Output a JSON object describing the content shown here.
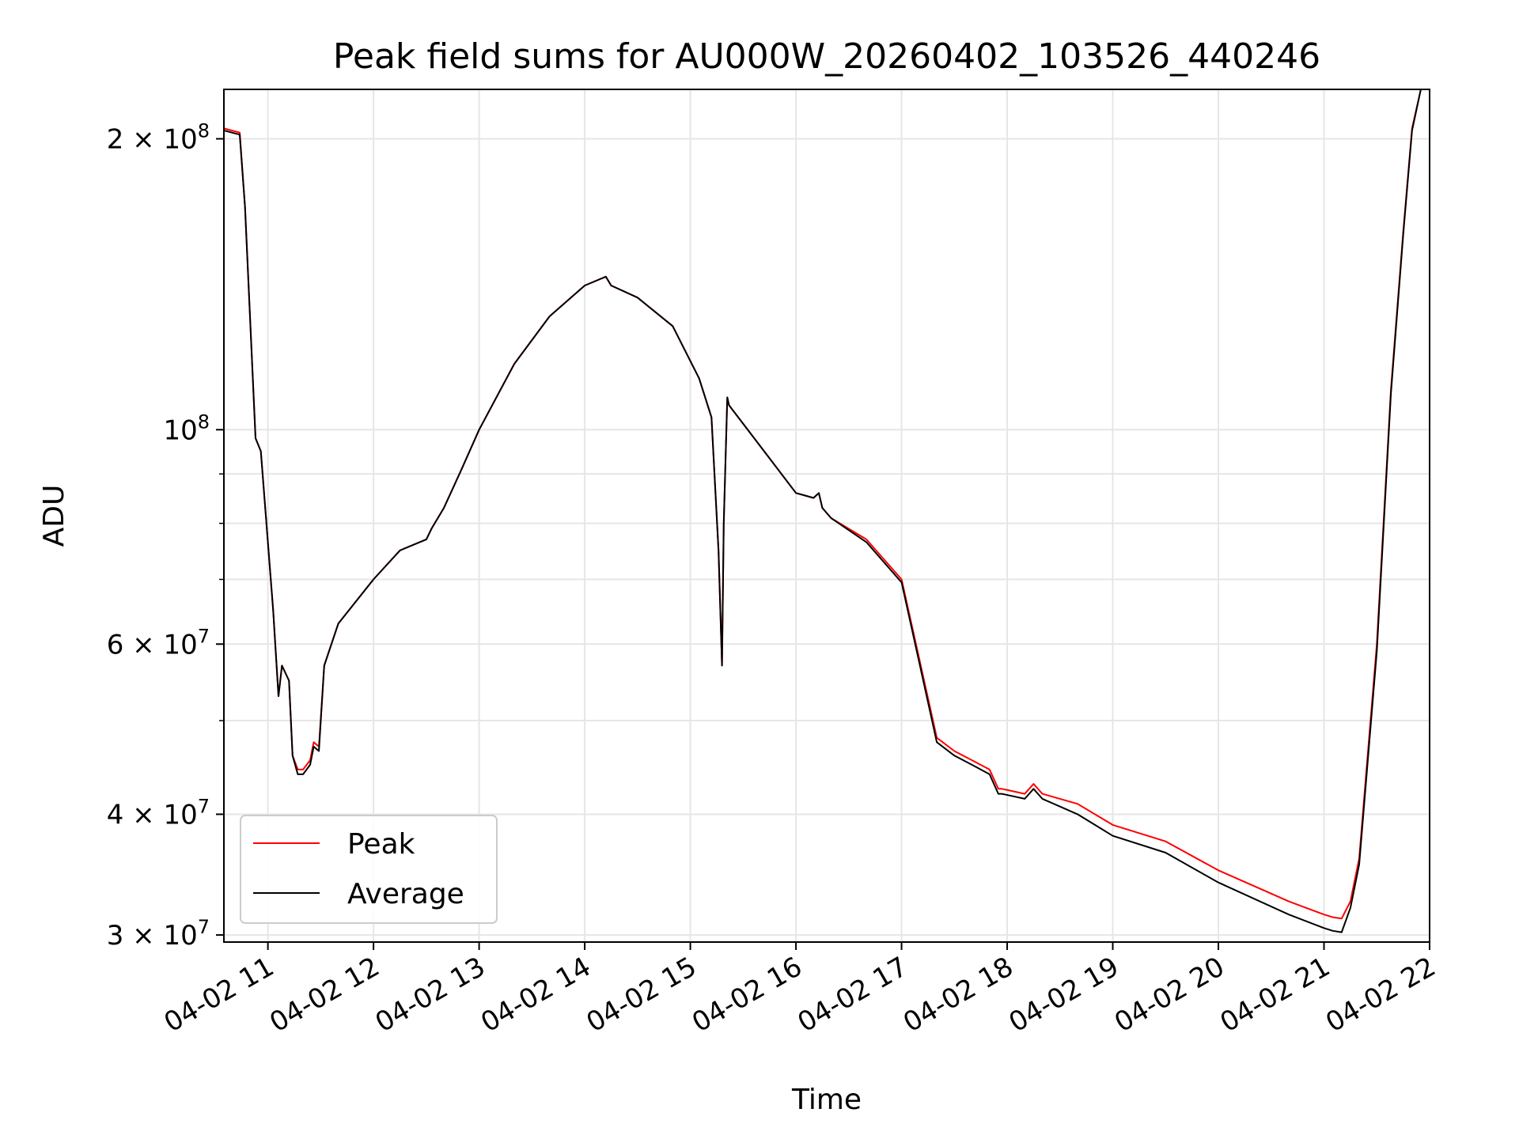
{
  "chart_data": {
    "type": "line",
    "title": "Peak field sums for AU000W_20260402_103526_440246",
    "xlabel": "Time",
    "ylabel": "ADU",
    "x_axis": "time",
    "y_scale": "log",
    "xlim": [
      "2026-04-02 10:35",
      "2026-04-02 22:00"
    ],
    "ylim": [
      29500000,
      225000000
    ],
    "x_ticks": [
      {
        "value": "2026-04-02 11:00",
        "label": "04-02 11"
      },
      {
        "value": "2026-04-02 12:00",
        "label": "04-02 12"
      },
      {
        "value": "2026-04-02 13:00",
        "label": "04-02 13"
      },
      {
        "value": "2026-04-02 14:00",
        "label": "04-02 14"
      },
      {
        "value": "2026-04-02 15:00",
        "label": "04-02 15"
      },
      {
        "value": "2026-04-02 16:00",
        "label": "04-02 16"
      },
      {
        "value": "2026-04-02 17:00",
        "label": "04-02 17"
      },
      {
        "value": "2026-04-02 18:00",
        "label": "04-02 18"
      },
      {
        "value": "2026-04-02 19:00",
        "label": "04-02 19"
      },
      {
        "value": "2026-04-02 20:00",
        "label": "04-02 20"
      },
      {
        "value": "2026-04-02 21:00",
        "label": "04-02 21"
      },
      {
        "value": "2026-04-02 22:00",
        "label": "04-02 22"
      }
    ],
    "y_ticks": [
      {
        "value": 200000000,
        "mantissa": "2",
        "exponent": "8"
      },
      {
        "value": 100000000,
        "mantissa": "",
        "exponent": "8"
      },
      {
        "value": 60000000,
        "mantissa": "6",
        "exponent": "7"
      },
      {
        "value": 40000000,
        "mantissa": "4",
        "exponent": "7"
      },
      {
        "value": 30000000,
        "mantissa": "3",
        "exponent": "7"
      }
    ],
    "y_minor_ticks": [
      50000000,
      70000000,
      80000000,
      90000000
    ],
    "grid": true,
    "legend_position": "lower-left",
    "series": [
      {
        "name": "Peak",
        "color": "#ff0000",
        "x": [
          "2026-04-02 10:35",
          "2026-04-02 10:44",
          "2026-04-02 10:47",
          "2026-04-02 10:53",
          "2026-04-02 10:56",
          "2026-04-02 11:03",
          "2026-04-02 11:06",
          "2026-04-02 11:08",
          "2026-04-02 11:12",
          "2026-04-02 11:14",
          "2026-04-02 11:17",
          "2026-04-02 11:20",
          "2026-04-02 11:24",
          "2026-04-02 11:26",
          "2026-04-02 11:29",
          "2026-04-02 11:32",
          "2026-04-02 11:40",
          "2026-04-02 12:00",
          "2026-04-02 12:15",
          "2026-04-02 12:30",
          "2026-04-02 12:33",
          "2026-04-02 12:40",
          "2026-04-02 12:50",
          "2026-04-02 13:00",
          "2026-04-02 13:20",
          "2026-04-02 13:40",
          "2026-04-02 14:00",
          "2026-04-02 14:12",
          "2026-04-02 14:15",
          "2026-04-02 14:30",
          "2026-04-02 14:50",
          "2026-04-02 15:05",
          "2026-04-02 15:12",
          "2026-04-02 15:16",
          "2026-04-02 15:18",
          "2026-04-02 15:19",
          "2026-04-02 15:21",
          "2026-04-02 15:22",
          "2026-04-02 15:40",
          "2026-04-02 16:00",
          "2026-04-02 16:10",
          "2026-04-02 16:13",
          "2026-04-02 16:15",
          "2026-04-02 16:20",
          "2026-04-02 16:40",
          "2026-04-02 17:00",
          "2026-04-02 17:10",
          "2026-04-02 17:20",
          "2026-04-02 17:30",
          "2026-04-02 17:40",
          "2026-04-02 17:50",
          "2026-04-02 17:55",
          "2026-04-02 17:57",
          "2026-04-02 18:10",
          "2026-04-02 18:15",
          "2026-04-02 18:20",
          "2026-04-02 18:40",
          "2026-04-02 19:00",
          "2026-04-02 19:30",
          "2026-04-02 20:00",
          "2026-04-02 20:40",
          "2026-04-02 21:00",
          "2026-04-02 21:05",
          "2026-04-02 21:10",
          "2026-04-02 21:15",
          "2026-04-02 21:20",
          "2026-04-02 21:30",
          "2026-04-02 21:38",
          "2026-04-02 21:45",
          "2026-04-02 21:50",
          "2026-04-02 21:55"
        ],
        "y": [
          205000000,
          203000000,
          170000000,
          98000000,
          95000000,
          65000000,
          53000000,
          57000000,
          55000000,
          46000000,
          44500000,
          44500000,
          45500000,
          47500000,
          47000000,
          57000000,
          63000000,
          70000000,
          75000000,
          77000000,
          79000000,
          83000000,
          91000000,
          100000000,
          117000000,
          131000000,
          141000000,
          144000000,
          141000000,
          137000000,
          128000000,
          113000000,
          103000000,
          75000000,
          57000000,
          80000000,
          108000000,
          106000000,
          96000000,
          86000000,
          85000000,
          86000000,
          83000000,
          81000000,
          77000000,
          70000000,
          58000000,
          48000000,
          46500000,
          45500000,
          44500000,
          42500000,
          42500000,
          42000000,
          43000000,
          42000000,
          41000000,
          39000000,
          37500000,
          35000000,
          32500000,
          31500000,
          31300000,
          31200000,
          32500000,
          36000000,
          60000000,
          110000000,
          160000000,
          205000000,
          225000000
        ]
      },
      {
        "name": "Average",
        "color": "#000000",
        "x": [
          "2026-04-02 10:35",
          "2026-04-02 10:44",
          "2026-04-02 10:47",
          "2026-04-02 10:53",
          "2026-04-02 10:56",
          "2026-04-02 11:03",
          "2026-04-02 11:06",
          "2026-04-02 11:08",
          "2026-04-02 11:12",
          "2026-04-02 11:14",
          "2026-04-02 11:17",
          "2026-04-02 11:20",
          "2026-04-02 11:24",
          "2026-04-02 11:26",
          "2026-04-02 11:29",
          "2026-04-02 11:32",
          "2026-04-02 11:40",
          "2026-04-02 12:00",
          "2026-04-02 12:15",
          "2026-04-02 12:30",
          "2026-04-02 12:33",
          "2026-04-02 12:40",
          "2026-04-02 12:50",
          "2026-04-02 13:00",
          "2026-04-02 13:20",
          "2026-04-02 13:40",
          "2026-04-02 14:00",
          "2026-04-02 14:12",
          "2026-04-02 14:15",
          "2026-04-02 14:30",
          "2026-04-02 14:50",
          "2026-04-02 15:05",
          "2026-04-02 15:12",
          "2026-04-02 15:16",
          "2026-04-02 15:18",
          "2026-04-02 15:19",
          "2026-04-02 15:21",
          "2026-04-02 15:22",
          "2026-04-02 15:40",
          "2026-04-02 16:00",
          "2026-04-02 16:10",
          "2026-04-02 16:13",
          "2026-04-02 16:15",
          "2026-04-02 16:20",
          "2026-04-02 16:40",
          "2026-04-02 17:00",
          "2026-04-02 17:10",
          "2026-04-02 17:20",
          "2026-04-02 17:30",
          "2026-04-02 17:40",
          "2026-04-02 17:50",
          "2026-04-02 17:55",
          "2026-04-02 17:57",
          "2026-04-02 18:10",
          "2026-04-02 18:15",
          "2026-04-02 18:20",
          "2026-04-02 18:40",
          "2026-04-02 19:00",
          "2026-04-02 19:30",
          "2026-04-02 20:00",
          "2026-04-02 20:40",
          "2026-04-02 21:00",
          "2026-04-02 21:05",
          "2026-04-02 21:10",
          "2026-04-02 21:15",
          "2026-04-02 21:20",
          "2026-04-02 21:30",
          "2026-04-02 21:38",
          "2026-04-02 21:45",
          "2026-04-02 21:50",
          "2026-04-02 21:55"
        ],
        "y": [
          204000000,
          202000000,
          170000000,
          98000000,
          95000000,
          65000000,
          53000000,
          57000000,
          55000000,
          46000000,
          44000000,
          44000000,
          45000000,
          47000000,
          46500000,
          57000000,
          63000000,
          70000000,
          75000000,
          77000000,
          79000000,
          83000000,
          91000000,
          100000000,
          117000000,
          131000000,
          141000000,
          144000000,
          141000000,
          137000000,
          128000000,
          113000000,
          103000000,
          75000000,
          57000000,
          80000000,
          108000000,
          106000000,
          96000000,
          86000000,
          85000000,
          86000000,
          83000000,
          81000000,
          76500000,
          69500000,
          57500000,
          47500000,
          46000000,
          45000000,
          44000000,
          42000000,
          42000000,
          41500000,
          42500000,
          41500000,
          40000000,
          38000000,
          36500000,
          34000000,
          31500000,
          30500000,
          30300000,
          30200000,
          32000000,
          35500000,
          59000000,
          109000000,
          159000000,
          204000000,
          225000000
        ]
      }
    ]
  }
}
